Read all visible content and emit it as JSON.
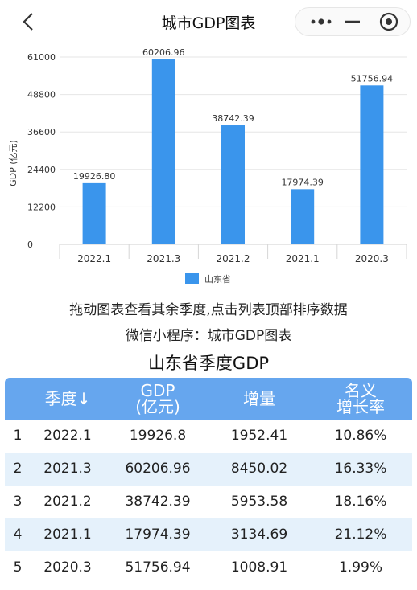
{
  "header": {
    "title": "城市GDP图表"
  },
  "chart_data": {
    "type": "bar",
    "categories": [
      "2022.1",
      "2021.3",
      "2021.2",
      "2021.1",
      "2020.3"
    ],
    "series": [
      {
        "name": "山东省",
        "values": [
          19926.8,
          60206.96,
          38742.39,
          17974.39,
          51756.94
        ]
      }
    ],
    "value_labels": [
      "19926.80",
      "60206.96",
      "38742.39",
      "17974.39",
      "51756.94"
    ],
    "yticks": [
      "0",
      "12200",
      "24400",
      "36600",
      "48800",
      "61000"
    ],
    "ylim": [
      0,
      61000
    ],
    "ylabel": "GDP (亿元)",
    "xlabel": "",
    "grid": true,
    "legend_position": "bottom",
    "bar_color": "#3a95ec"
  },
  "captions": {
    "line1": "拖动图表查看其余季度,点击列表顶部排序数据",
    "line2": "微信小程序：城市GDP图表"
  },
  "table": {
    "title": "山东省季度GDP",
    "headers": {
      "quarter": "季度↓",
      "gdp_line1": "GDP",
      "gdp_line2": "(亿元)",
      "increase": "增量",
      "rate_line1": "名义",
      "rate_line2": "增长率"
    },
    "rows": [
      {
        "rank": "1",
        "quarter": "2022.1",
        "gdp": "19926.8",
        "increase": "1952.41",
        "rate": "10.86%"
      },
      {
        "rank": "2",
        "quarter": "2021.3",
        "gdp": "60206.96",
        "increase": "8450.02",
        "rate": "16.33%"
      },
      {
        "rank": "3",
        "quarter": "2021.2",
        "gdp": "38742.39",
        "increase": "5953.58",
        "rate": "18.16%"
      },
      {
        "rank": "4",
        "quarter": "2021.1",
        "gdp": "17974.39",
        "increase": "3134.69",
        "rate": "21.12%"
      },
      {
        "rank": "5",
        "quarter": "2020.3",
        "gdp": "51756.94",
        "increase": "1008.91",
        "rate": "1.99%"
      }
    ]
  },
  "colors": {
    "header_bg": "#66a6ee",
    "alt_row_bg": "#e5f1fb"
  }
}
